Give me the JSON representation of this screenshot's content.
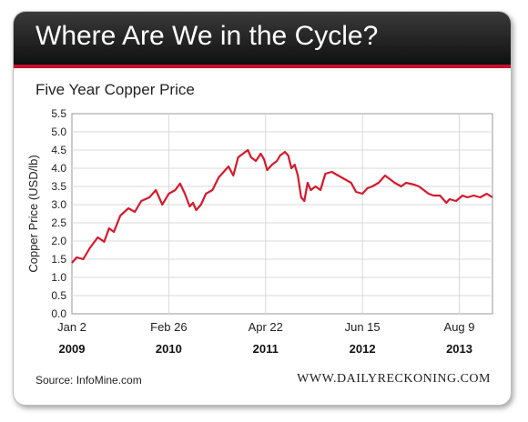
{
  "header": {
    "title": "Where Are We in the Cycle?",
    "subtitle": "Five Year Copper Price"
  },
  "footer": {
    "source": "Source: InfoMine.com",
    "brand": "WWW.DAILYRECKONING.COM"
  },
  "colors": {
    "series": "#d7192b",
    "banner_accent": "#c8102e"
  },
  "chart_data": {
    "type": "line",
    "title": "Five Year Copper Price",
    "ylabel": "Copper Price (USD/lb)",
    "xlabel": "",
    "ylim": [
      0,
      5.5
    ],
    "yticks": [
      "0.0",
      "0.5",
      "1.0",
      "1.5",
      "2.0",
      "2.5",
      "3.0",
      "3.5",
      "4.0",
      "4.5",
      "5.0",
      "5.5"
    ],
    "xlim": [
      "2009-01-02",
      "2013-12-31"
    ],
    "xticks": [
      {
        "date": "2009-01-02",
        "label": "Jan 2",
        "year": "2009"
      },
      {
        "date": "2010-02-26",
        "label": "Feb 26",
        "year": "2010"
      },
      {
        "date": "2011-04-22",
        "label": "Apr 22",
        "year": "2011"
      },
      {
        "date": "2012-06-15",
        "label": "Jun 15",
        "year": "2012"
      },
      {
        "date": "2013-08-09",
        "label": "Aug 9",
        "year": "2013"
      }
    ],
    "grid": true,
    "series": [
      {
        "x": [
          "2009-01-02",
          "2009-01-23",
          "2009-02-20",
          "2009-03-20",
          "2009-04-24",
          "2009-05-22",
          "2009-06-12",
          "2009-07-03",
          "2009-07-31",
          "2009-09-04",
          "2009-10-02",
          "2009-10-30",
          "2009-12-04",
          "2010-01-01",
          "2010-01-29",
          "2010-02-26",
          "2010-03-26",
          "2010-04-16",
          "2010-05-07",
          "2010-05-28",
          "2010-06-11",
          "2010-06-25",
          "2010-07-16",
          "2010-08-06",
          "2010-09-03",
          "2010-10-01",
          "2010-10-22",
          "2010-11-12",
          "2010-12-03",
          "2010-12-24",
          "2011-01-14",
          "2011-02-04",
          "2011-02-18",
          "2011-03-11",
          "2011-04-01",
          "2011-04-15",
          "2011-04-29",
          "2011-05-20",
          "2011-06-10",
          "2011-06-24",
          "2011-07-15",
          "2011-07-29",
          "2011-08-12",
          "2011-08-26",
          "2011-09-09",
          "2011-09-23",
          "2011-10-07",
          "2011-10-21",
          "2011-11-04",
          "2011-11-25",
          "2011-12-16",
          "2012-01-06",
          "2012-02-03",
          "2012-03-02",
          "2012-03-30",
          "2012-04-27",
          "2012-05-18",
          "2012-06-15",
          "2012-07-06",
          "2012-07-27",
          "2012-08-24",
          "2012-09-21",
          "2012-10-12",
          "2012-11-02",
          "2012-11-30",
          "2012-12-21",
          "2013-01-25",
          "2013-02-15",
          "2013-03-08",
          "2013-03-29",
          "2013-04-19",
          "2013-05-17",
          "2013-06-14",
          "2013-06-28",
          "2013-07-26",
          "2013-08-23",
          "2013-09-13",
          "2013-10-11",
          "2013-11-08",
          "2013-12-06",
          "2013-12-31"
        ],
        "y": [
          1.4,
          1.55,
          1.5,
          1.8,
          2.1,
          1.98,
          2.35,
          2.25,
          2.7,
          2.9,
          2.8,
          3.1,
          3.2,
          3.4,
          3.0,
          3.3,
          3.4,
          3.58,
          3.3,
          2.95,
          3.05,
          2.85,
          3.0,
          3.3,
          3.4,
          3.75,
          3.9,
          4.05,
          3.8,
          4.3,
          4.4,
          4.5,
          4.3,
          4.2,
          4.4,
          4.25,
          3.95,
          4.1,
          4.2,
          4.35,
          4.45,
          4.35,
          4.0,
          4.1,
          3.8,
          3.2,
          3.1,
          3.6,
          3.4,
          3.5,
          3.4,
          3.85,
          3.9,
          3.8,
          3.7,
          3.6,
          3.35,
          3.3,
          3.45,
          3.5,
          3.6,
          3.8,
          3.7,
          3.6,
          3.5,
          3.6,
          3.55,
          3.5,
          3.4,
          3.3,
          3.25,
          3.25,
          3.05,
          3.15,
          3.1,
          3.25,
          3.2,
          3.25,
          3.2,
          3.3,
          3.2
        ]
      }
    ]
  }
}
